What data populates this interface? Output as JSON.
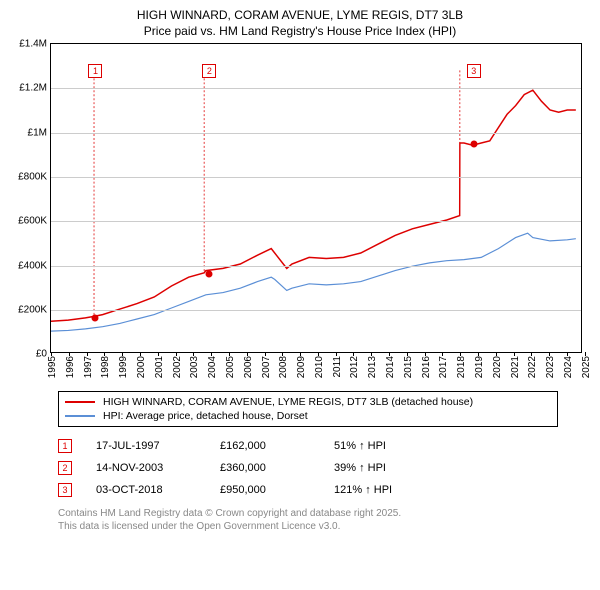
{
  "title_line1": "HIGH WINNARD, CORAM AVENUE, LYME REGIS, DT7 3LB",
  "title_line2": "Price paid vs. HM Land Registry's House Price Index (HPI)",
  "chart": {
    "type": "line",
    "x_years": [
      1995,
      1996,
      1997,
      1998,
      1999,
      2000,
      2001,
      2002,
      2003,
      2004,
      2005,
      2006,
      2007,
      2008,
      2009,
      2010,
      2011,
      2012,
      2013,
      2014,
      2015,
      2016,
      2017,
      2018,
      2019,
      2020,
      2021,
      2022,
      2023,
      2024,
      2025
    ],
    "xlim": [
      1995,
      2025.8
    ],
    "ylim": [
      0,
      1400000
    ],
    "ytick_step": 200000,
    "ytick_labels": [
      "£0",
      "£200K",
      "£400K",
      "£600K",
      "£800K",
      "£1M",
      "£1.2M",
      "£1.4M"
    ],
    "grid_color": "#cccccc",
    "border_color": "#000000",
    "background_color": "#ffffff",
    "series": [
      {
        "name": "HIGH WINNARD, CORAM AVENUE, LYME REGIS, DT7 3LB (detached house)",
        "color": "#dd0000",
        "line_width": 1.5,
        "points": [
          [
            1995,
            140000
          ],
          [
            1996,
            145000
          ],
          [
            1997,
            155000
          ],
          [
            1997.5,
            162000
          ],
          [
            1998,
            170000
          ],
          [
            1999,
            195000
          ],
          [
            2000,
            220000
          ],
          [
            2001,
            250000
          ],
          [
            2002,
            300000
          ],
          [
            2003,
            340000
          ],
          [
            2003.9,
            360000
          ],
          [
            2004,
            370000
          ],
          [
            2005,
            380000
          ],
          [
            2006,
            400000
          ],
          [
            2007,
            440000
          ],
          [
            2007.8,
            470000
          ],
          [
            2008,
            450000
          ],
          [
            2008.7,
            380000
          ],
          [
            2009,
            400000
          ],
          [
            2010,
            430000
          ],
          [
            2011,
            425000
          ],
          [
            2012,
            430000
          ],
          [
            2013,
            450000
          ],
          [
            2014,
            490000
          ],
          [
            2015,
            530000
          ],
          [
            2016,
            560000
          ],
          [
            2017,
            580000
          ],
          [
            2018,
            600000
          ],
          [
            2018.75,
            620000
          ],
          [
            2018.76,
            950000
          ],
          [
            2019,
            950000
          ],
          [
            2019.5,
            940000
          ],
          [
            2020,
            950000
          ],
          [
            2020.5,
            960000
          ],
          [
            2021,
            1020000
          ],
          [
            2021.5,
            1080000
          ],
          [
            2022,
            1120000
          ],
          [
            2022.5,
            1170000
          ],
          [
            2023,
            1190000
          ],
          [
            2023.5,
            1140000
          ],
          [
            2024,
            1100000
          ],
          [
            2024.5,
            1090000
          ],
          [
            2025,
            1100000
          ],
          [
            2025.5,
            1100000
          ]
        ]
      },
      {
        "name": "HPI: Average price, detached house, Dorset",
        "color": "#5b8fd6",
        "line_width": 1.2,
        "points": [
          [
            1995,
            95000
          ],
          [
            1996,
            98000
          ],
          [
            1997,
            105000
          ],
          [
            1998,
            115000
          ],
          [
            1999,
            130000
          ],
          [
            2000,
            150000
          ],
          [
            2001,
            170000
          ],
          [
            2002,
            200000
          ],
          [
            2003,
            230000
          ],
          [
            2004,
            260000
          ],
          [
            2005,
            270000
          ],
          [
            2006,
            290000
          ],
          [
            2007,
            320000
          ],
          [
            2007.8,
            340000
          ],
          [
            2008,
            330000
          ],
          [
            2008.7,
            280000
          ],
          [
            2009,
            290000
          ],
          [
            2010,
            310000
          ],
          [
            2011,
            305000
          ],
          [
            2012,
            310000
          ],
          [
            2013,
            320000
          ],
          [
            2014,
            345000
          ],
          [
            2015,
            370000
          ],
          [
            2016,
            390000
          ],
          [
            2017,
            405000
          ],
          [
            2018,
            415000
          ],
          [
            2019,
            420000
          ],
          [
            2020,
            430000
          ],
          [
            2021,
            470000
          ],
          [
            2022,
            520000
          ],
          [
            2022.7,
            540000
          ],
          [
            2023,
            520000
          ],
          [
            2024,
            505000
          ],
          [
            2025,
            510000
          ],
          [
            2025.5,
            515000
          ]
        ]
      }
    ],
    "sale_markers": [
      {
        "num": "1",
        "year": 1997.5,
        "price": 162000,
        "box_y": 1280000
      },
      {
        "num": "2",
        "year": 2003.9,
        "price": 360000,
        "box_y": 1280000
      },
      {
        "num": "3",
        "year": 2018.76,
        "price": 950000,
        "box_y": 1280000
      }
    ]
  },
  "legend": [
    {
      "label": "HIGH WINNARD, CORAM AVENUE, LYME REGIS, DT7 3LB (detached house)",
      "color": "#dd0000"
    },
    {
      "label": "HPI: Average price, detached house, Dorset",
      "color": "#5b8fd6"
    }
  ],
  "sales": [
    {
      "num": "1",
      "date": "17-JUL-1997",
      "price": "£162,000",
      "pct": "51% ↑ HPI"
    },
    {
      "num": "2",
      "date": "14-NOV-2003",
      "price": "£360,000",
      "pct": "39% ↑ HPI"
    },
    {
      "num": "3",
      "date": "03-OCT-2018",
      "price": "£950,000",
      "pct": "121% ↑ HPI"
    }
  ],
  "footer_line1": "Contains HM Land Registry data © Crown copyright and database right 2025.",
  "footer_line2": "This data is licensed under the Open Government Licence v3.0."
}
